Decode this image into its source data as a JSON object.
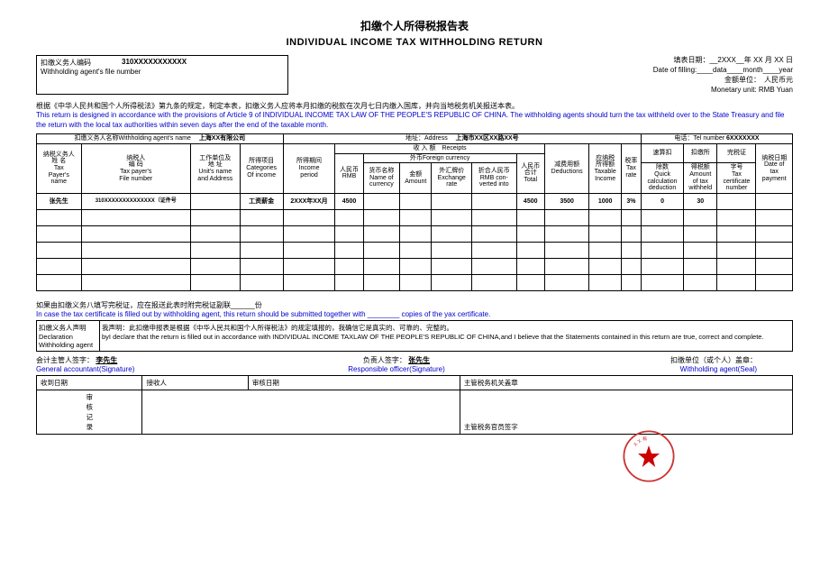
{
  "title_cn": "扣缴个人所得税报告表",
  "title_en": "INDIVIDUAL INCOME TAX WITHHOLDING RETURN",
  "fill_date_cn": "填表日期：__2XXX__年 XX 月 XX 日",
  "fill_date_en": "Date of filling:____data____month____year",
  "monetary_cn": "金额单位：　人民币元",
  "monetary_en": "Monetary unit: RMB Yuan",
  "agent_code_label_cn": "扣缴义务人编码",
  "agent_code_value": "310XXXXXXXXXXX",
  "agent_code_label_en": "Withholding agent's file number",
  "intro_cn": "根据《中华人民共和国个人所得税法》第九条的规定，制定本表，扣缴义务人应将本月扣缴的税款在次月七日内缴入国库，并向当地税务机关报送本表。",
  "intro_en": "This return is designed in accordance with the provisions of Article 9 of INDIVIDUAL INCOME TAX LAW OF THE PEOPLE'S REPUBLIC OF CHINA. The withholding agents should turn the tax withheld over to the State Treasury and file the return with the local tax authorities within seven days after the end of the taxable month.",
  "agent_name_label": "扣缴义务人名称Withholding agent's name",
  "agent_name_value": "上海XX有限公司",
  "address_label": "地址：Address",
  "address_value": "上海市XX区XX路XX号",
  "tel_label": "电话：Tel number",
  "tel_value": "6XXXXXXX",
  "receipts_label": "收 入 额　Receipts",
  "foreign_label": "外币Foreign currency",
  "headers": {
    "c1": [
      "纳税义务人",
      "姓 名",
      "Tax",
      "Payer's",
      "name"
    ],
    "c2": [
      "纳税人",
      "编 码",
      "Tax payer's",
      "File number"
    ],
    "c3": [
      "工作单位及",
      "地 址",
      "Unit's name",
      "and Address"
    ],
    "c4": [
      "所得项目",
      "Categories",
      "Of income"
    ],
    "c5": [
      "所得期间",
      "Income",
      "period"
    ],
    "c6": [
      "人民币",
      "RMB"
    ],
    "c7": [
      "货币名称",
      "Name of",
      "currency"
    ],
    "c8": [
      "金额",
      "Amount"
    ],
    "c9": [
      "外汇牌价",
      "Exchange",
      "rate"
    ],
    "c10": [
      "折合人民币",
      "RMB con-",
      "verted into"
    ],
    "c11": [
      "人民币",
      "合计",
      "Total"
    ],
    "c12": [
      "减费用额",
      "Deductions"
    ],
    "c13": [
      "应纳税",
      "所得额",
      "Taxable",
      "Income"
    ],
    "c14": [
      "税率",
      "Tax",
      "rate"
    ],
    "c15": [
      "速算扣",
      "除数",
      "Quick",
      "calculation",
      "deduction"
    ],
    "c16": [
      "扣缴所",
      "得税额",
      "Amount",
      "of tax",
      "withheld"
    ],
    "c17": [
      "完税证",
      "字号",
      "Tax",
      "certificate",
      "number"
    ],
    "c18": [
      "纳税日期",
      "Date of",
      "tax",
      "payment"
    ]
  },
  "row": {
    "name": "张先生",
    "code": "310XXXXXXXXXXXXXX（证件号",
    "unit": "",
    "category": "工资薪金",
    "period": "2XXX年XX月",
    "rmb": "4500",
    "total": "4500",
    "deduct": "3500",
    "taxable": "1000",
    "rate": "3%",
    "quick": "0",
    "withheld": "30"
  },
  "footer_cn": "如果由扣缴义务八填写完税证，应在报送此表时附完税证副联______份",
  "footer_en_1": "In case the tax certificate is filled out by withholding agent, this return should be submitted together with",
  "footer_en_2": "copies of the yax certificate.",
  "decl_label_cn": "扣缴义务人声明",
  "decl_label_en": "Declaration Withholding agent",
  "decl_text_cn": "我声明：此扣缴申报表是根据《中华人民共和国个人所得税法》的规定填报的，我确信它是真实的、可靠的、完整的。",
  "decl_text_en": "byI declare that the return is filled out in accordance with INDIVIDUAL INCOME TAXLAW OF THE PEOPLE'S REPUBLIC OF CHINA,and I believe that the Statements contained in this return are true, correct and complete.",
  "sig1_cn": "会计主管人签字：",
  "sig1_name": "李先生",
  "sig1_en": "General accountant(Signature)",
  "sig2_cn": "负责人签字：",
  "sig2_name": "张先生",
  "sig2_en": "Responsible officer(Signature)",
  "sig3_cn": "扣缴单位（或个人）盖章：",
  "sig3_en": "Withholding agent(Seal)",
  "bottom": {
    "r1c1": "收到日期",
    "r1c2": "接收人",
    "r1c3": "审核日期",
    "r1c4": "主管税务机关盖章",
    "r2c1": "审\n核\n记\n录",
    "r2c4": "主管税务官员签字"
  },
  "colors": {
    "text": "#000000",
    "blue": "#0000cc",
    "seal_stroke": "#cc3333",
    "seal_fill": "#cc0000",
    "bg": "#ffffff"
  }
}
